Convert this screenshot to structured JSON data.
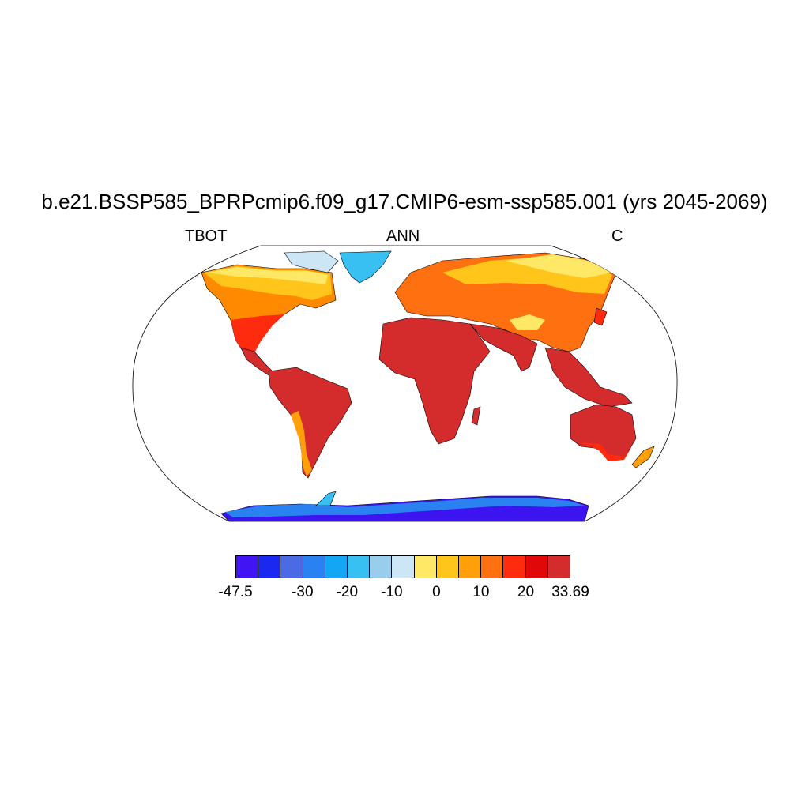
{
  "title": "b.e21.BSSP585_BPRPcmip6.f09_g17.CMIP6-esm-ssp585.001 (yrs 2045-2069)",
  "subtitle_left": "TBOT",
  "subtitle_center": "ANN",
  "subtitle_right": "C",
  "colors": {
    "very_cold": "#3c14f0",
    "cold": "#1446e6",
    "cool": "#2a82f0",
    "ice_light": "#cfe6f5",
    "mild": "#ffd040",
    "warm": "#ff6a00",
    "hot": "#d42828"
  },
  "colorbar": {
    "colors": [
      "#4114f4",
      "#1a28f0",
      "#4a6ae6",
      "#2a82f2",
      "#12a6f4",
      "#38c0f2",
      "#98cdec",
      "#cce6f6",
      "#ffe866",
      "#ffc51a",
      "#ff9f0a",
      "#ff7010",
      "#ff2b0f",
      "#e00808",
      "#d42c2c"
    ],
    "labels": [
      {
        "text": "-47.5",
        "box": 0
      },
      {
        "text": "-30",
        "box": 3
      },
      {
        "text": "-20",
        "box": 5
      },
      {
        "text": "-10",
        "box": 7
      },
      {
        "text": "0",
        "box": 9
      },
      {
        "text": "10",
        "box": 11
      },
      {
        "text": "20",
        "box": 13
      },
      {
        "text": "33.69",
        "box": 15
      }
    ]
  }
}
